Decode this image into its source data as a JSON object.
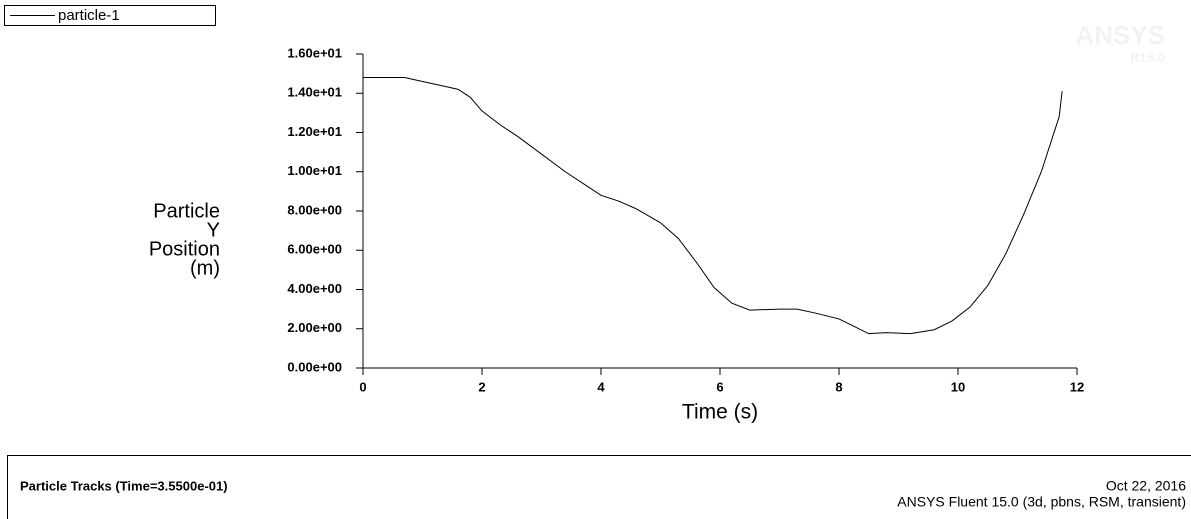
{
  "chart_data": {
    "type": "line",
    "x_label": "Time (s)",
    "y_label": [
      "Particle",
      "Y",
      "Position",
      "(m)"
    ],
    "watermark": [
      "ANSYS",
      "R15.0"
    ],
    "series": [
      {
        "name": "particle-1",
        "color": "#000000",
        "x": [
          0,
          0.5,
          0.7,
          1.0,
          1.3,
          1.6,
          1.8,
          2.0,
          2.3,
          2.6,
          3.0,
          3.4,
          3.8,
          4.0,
          4.3,
          4.6,
          5.0,
          5.3,
          5.6,
          5.9,
          6.2,
          6.5,
          7.0,
          7.3,
          7.6,
          8.0,
          8.2,
          8.5,
          8.8,
          9.2,
          9.6,
          9.9,
          10.2,
          10.5,
          10.8,
          11.1,
          11.4,
          11.7,
          11.75
        ],
        "values": [
          14.8,
          14.8,
          14.8,
          14.6,
          14.4,
          14.2,
          13.8,
          13.1,
          12.4,
          11.8,
          10.9,
          10.0,
          9.2,
          8.8,
          8.5,
          8.1,
          7.4,
          6.6,
          5.4,
          4.1,
          3.3,
          2.95,
          3.0,
          3.0,
          2.8,
          2.5,
          2.2,
          1.75,
          1.8,
          1.75,
          1.95,
          2.4,
          3.1,
          4.2,
          5.8,
          7.8,
          10.0,
          12.8,
          14.1
        ]
      }
    ],
    "xlim": [
      0,
      12
    ],
    "xticks": [
      0,
      2,
      4,
      6,
      8,
      10,
      12
    ],
    "ylim": [
      0,
      16
    ],
    "yticks": [
      {
        "value": 0,
        "label": "0.00e+00"
      },
      {
        "value": 2,
        "label": "2.00e+00"
      },
      {
        "value": 4,
        "label": "4.00e+00"
      },
      {
        "value": 6,
        "label": "6.00e+00"
      },
      {
        "value": 8,
        "label": "8.00e+00"
      },
      {
        "value": 10,
        "label": "1.00e+01"
      },
      {
        "value": 12,
        "label": "1.20e+01"
      },
      {
        "value": 14,
        "label": "1.40e+01"
      },
      {
        "value": 16,
        "label": "1.60e+01"
      }
    ],
    "footer": {
      "left": "Particle Tracks  (Time=3.5500e-01)",
      "date": "Oct 22, 2016",
      "info": "ANSYS Fluent 15.0 (3d, pbns, RSM, transient)"
    }
  }
}
